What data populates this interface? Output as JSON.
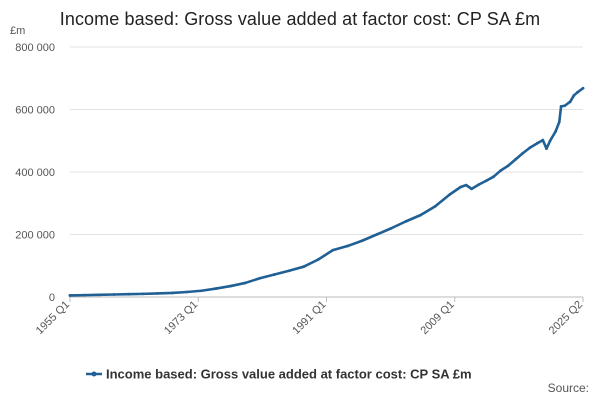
{
  "chart_data": {
    "type": "line",
    "title": "Income based: Gross value added at factor cost: CP SA £m",
    "y_unit": "£m",
    "xlabel": "",
    "ylabel": "",
    "source": "Source:",
    "x_tick_labels": [
      "1955 Q1",
      "1973 Q1",
      "1991 Q1",
      "2009 Q1",
      "2025 Q2"
    ],
    "y_tick_labels": [
      "0",
      "200 000",
      "400 000",
      "600 000",
      "800 000"
    ],
    "y_ticks": [
      0,
      200000,
      400000,
      600000,
      800000
    ],
    "ylim": [
      0,
      800000
    ],
    "xlim": [
      1955.0,
      2025.25
    ],
    "grid": true,
    "legend_position": "bottom",
    "series": [
      {
        "name": "Income based: Gross value added at factor cost: CP SA £m",
        "color": "#206095",
        "x": [
          1955,
          1957,
          1959,
          1961,
          1963,
          1965,
          1967,
          1969,
          1971,
          1973,
          1975,
          1977,
          1979,
          1981,
          1983,
          1985,
          1987,
          1989,
          1991,
          1993,
          1995,
          1997,
          1999,
          2001,
          2003,
          2005,
          2007,
          2008.5,
          2009.25,
          2010,
          2011,
          2012,
          2013,
          2014,
          2015,
          2016,
          2017,
          2018,
          2019,
          2019.75,
          2020.25,
          2020.75,
          2021.5,
          2022,
          2022.25,
          2022.75,
          2023.5,
          2024,
          2024.5,
          2025.25
        ],
        "y": [
          5000,
          6000,
          7000,
          8000,
          9000,
          10000,
          11500,
          13000,
          16000,
          20000,
          27000,
          35000,
          45000,
          60000,
          72000,
          84000,
          97000,
          120000,
          150000,
          163000,
          180000,
          200000,
          220000,
          242000,
          262000,
          290000,
          328000,
          352000,
          358000,
          346000,
          360000,
          372000,
          385000,
          405000,
          420000,
          440000,
          460000,
          478000,
          492000,
          502000,
          475000,
          500000,
          530000,
          560000,
          610000,
          612000,
          625000,
          645000,
          655000,
          668000
        ]
      }
    ]
  }
}
